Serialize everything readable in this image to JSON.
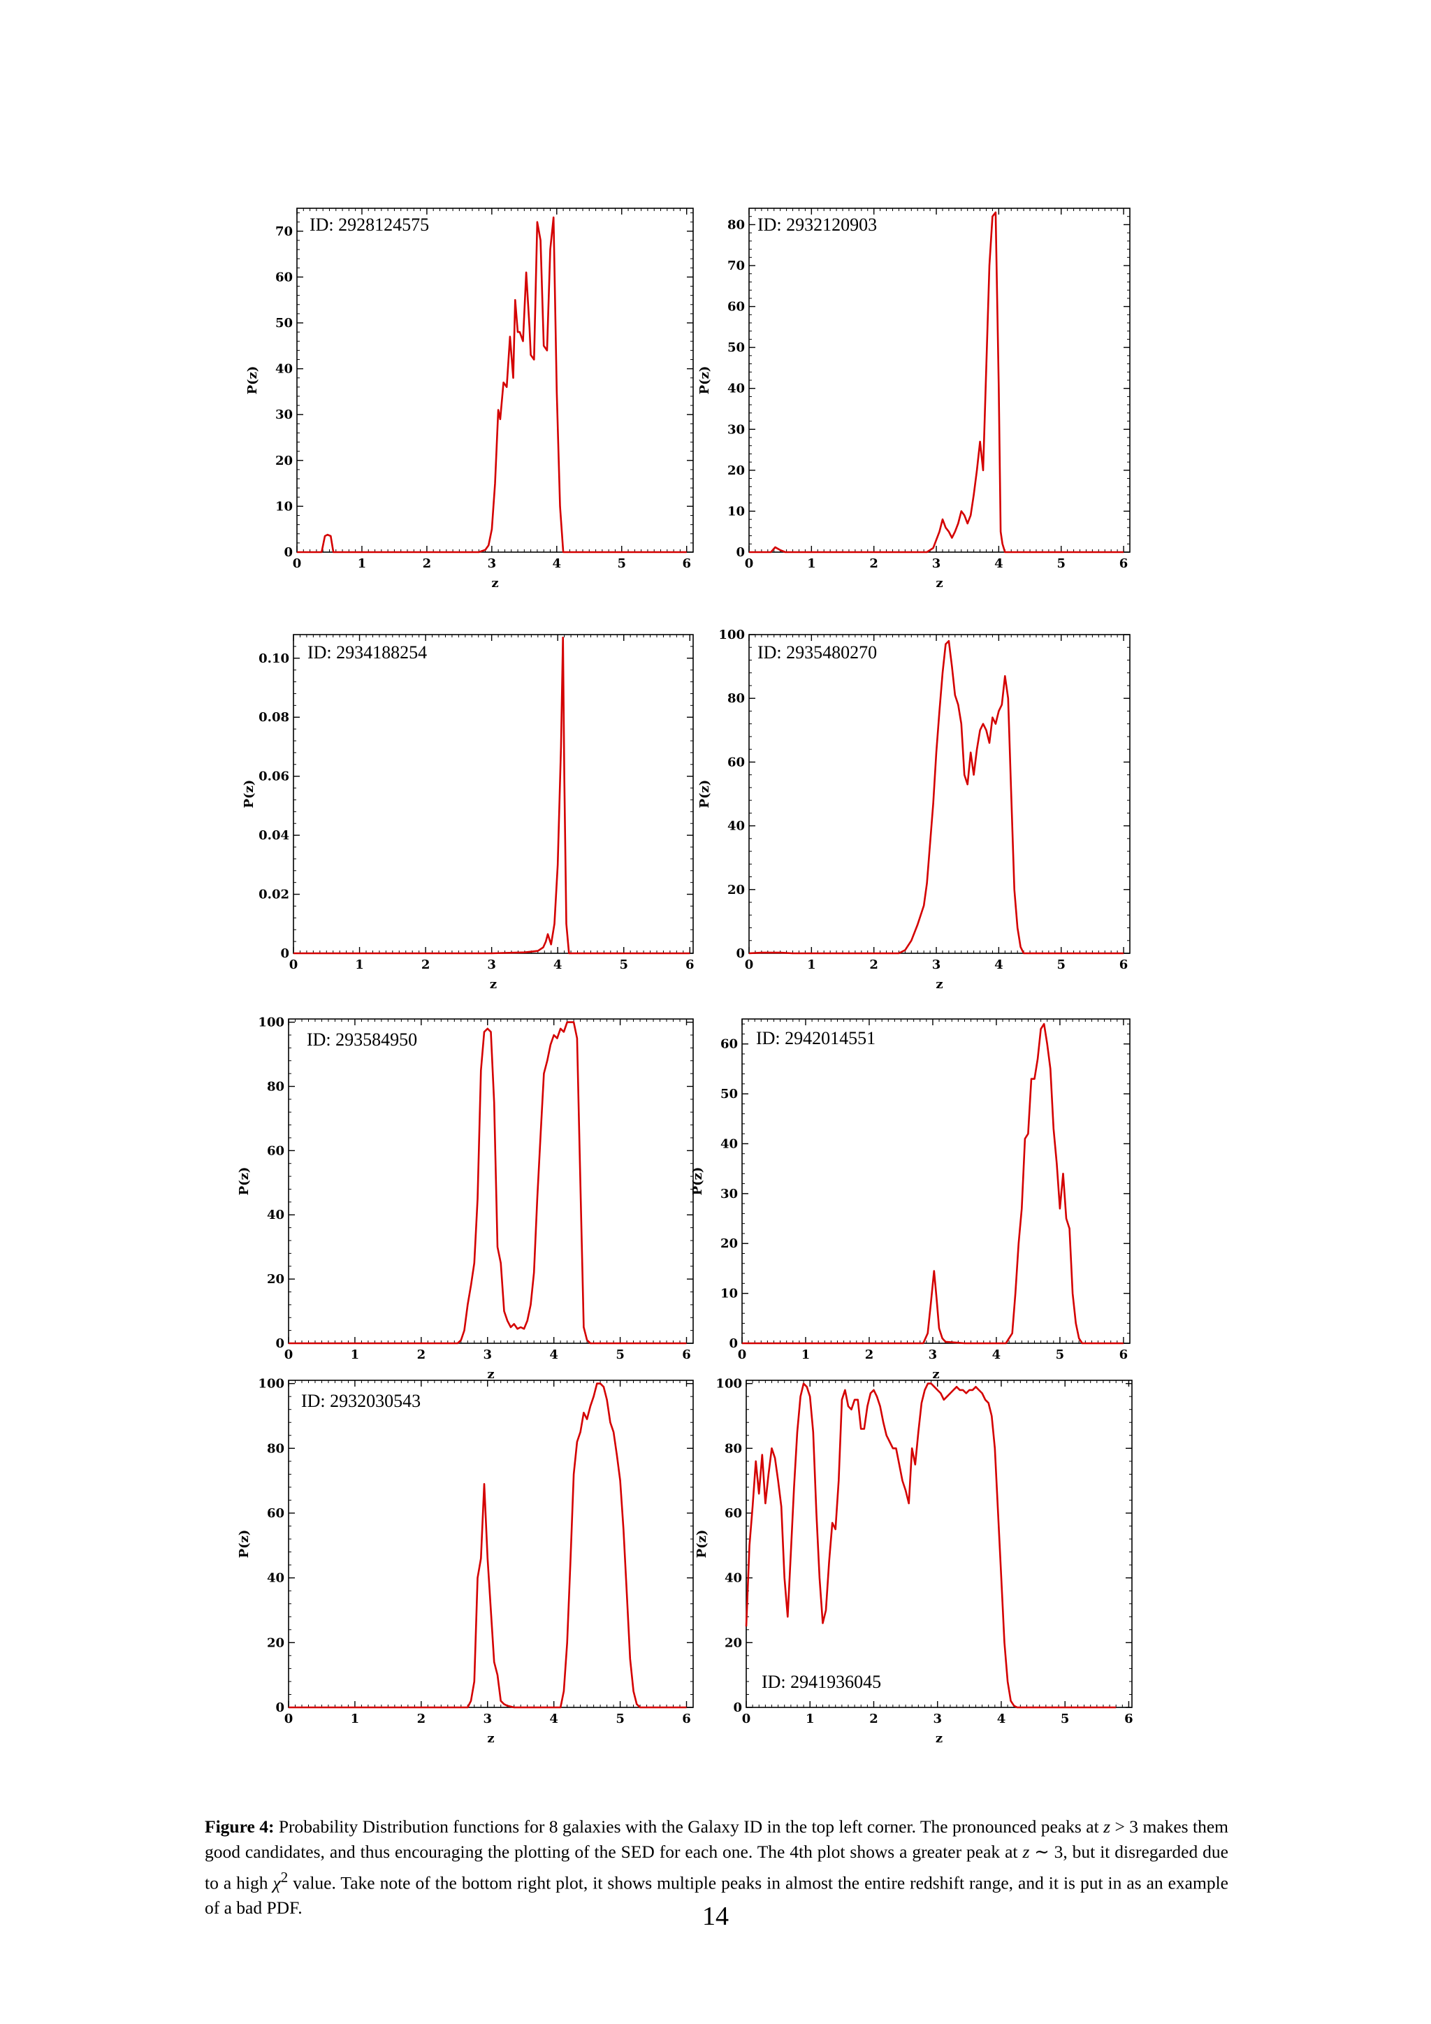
{
  "chart_data": [
    {
      "type": "line",
      "id_label": "ID: 2928124575",
      "xlabel": "z",
      "ylabel": "P(z)",
      "xlim": [
        0,
        6.1
      ],
      "ylim": [
        0,
        75
      ],
      "xticks": [
        0,
        1,
        2,
        3,
        4,
        5,
        6
      ],
      "yticks": [
        0,
        10,
        20,
        30,
        40,
        50,
        60,
        70
      ],
      "ytick_labels": [
        "0",
        "10",
        "20",
        "30",
        "40",
        "50",
        "60",
        "70"
      ],
      "color": "#d40000",
      "x": [
        0,
        0.38,
        0.43,
        0.47,
        0.52,
        0.56,
        0.62,
        2.8,
        2.9,
        2.95,
        3.0,
        3.05,
        3.1,
        3.13,
        3.18,
        3.23,
        3.28,
        3.33,
        3.36,
        3.4,
        3.43,
        3.48,
        3.53,
        3.58,
        3.6,
        3.65,
        3.7,
        3.75,
        3.8,
        3.85,
        3.9,
        3.95,
        4.0,
        4.05,
        4.1,
        4.15,
        4.2,
        6.0
      ],
      "y": [
        0,
        0,
        3.5,
        3.8,
        3.5,
        0,
        0,
        0,
        0.5,
        1.5,
        5,
        15,
        31,
        29,
        37,
        36,
        47,
        38,
        55,
        48,
        48,
        46,
        61,
        49,
        43,
        42,
        72,
        68,
        45,
        44,
        66,
        73,
        35,
        10,
        0,
        0,
        0,
        0
      ]
    },
    {
      "type": "line",
      "id_label": "ID: 2932120903",
      "xlabel": "z",
      "ylabel": "P(z)",
      "xlim": [
        0,
        6.1
      ],
      "ylim": [
        0,
        84
      ],
      "xticks": [
        0,
        1,
        2,
        3,
        4,
        5,
        6
      ],
      "yticks": [
        0,
        10,
        20,
        30,
        40,
        50,
        60,
        70,
        80
      ],
      "ytick_labels": [
        "0",
        "10",
        "20",
        "30",
        "40",
        "50",
        "60",
        "70",
        "80"
      ],
      "color": "#d40000",
      "x": [
        0,
        0.35,
        0.42,
        0.5,
        0.58,
        2.85,
        2.95,
        3.0,
        3.05,
        3.1,
        3.15,
        3.2,
        3.25,
        3.3,
        3.35,
        3.4,
        3.45,
        3.5,
        3.55,
        3.6,
        3.65,
        3.7,
        3.75,
        3.8,
        3.85,
        3.9,
        3.95,
        4.0,
        4.03,
        4.06,
        4.1,
        4.15,
        4.2,
        6.0
      ],
      "y": [
        0,
        0,
        1.2,
        0.5,
        0,
        0,
        1,
        3,
        5,
        8,
        6,
        5,
        3.5,
        5,
        7,
        10,
        9,
        7,
        9,
        14,
        20,
        27,
        20,
        45,
        70,
        82,
        83,
        40,
        5,
        2,
        0,
        0,
        0,
        0
      ]
    },
    {
      "type": "line",
      "id_label": "ID: 2934188254",
      "xlabel": "z",
      "ylabel": "P(z)",
      "xlim": [
        0,
        6.05
      ],
      "ylim": [
        0,
        0.108
      ],
      "xticks": [
        0,
        1,
        2,
        3,
        4,
        5,
        6
      ],
      "yticks": [
        0,
        0.02,
        0.04,
        0.06,
        0.08,
        0.1
      ],
      "ytick_labels": [
        "0",
        "0.02",
        "0.04",
        "0.06",
        "0.08",
        "0.10"
      ],
      "color": "#d40000",
      "x": [
        0,
        2.7,
        3.0,
        3.5,
        3.7,
        3.78,
        3.82,
        3.85,
        3.9,
        3.95,
        4.0,
        4.05,
        4.08,
        4.1,
        4.13,
        4.17,
        4.2,
        6.0
      ],
      "y": [
        0,
        0,
        0,
        0.0003,
        0.0008,
        0.002,
        0.004,
        0.0065,
        0.003,
        0.01,
        0.03,
        0.07,
        0.107,
        0.06,
        0.01,
        0,
        0,
        0
      ]
    },
    {
      "type": "line",
      "id_label": "ID: 2935480270",
      "xlabel": "z",
      "ylabel": "P(z)",
      "xlim": [
        0,
        6.1
      ],
      "ylim": [
        0,
        100
      ],
      "xticks": [
        0,
        1,
        2,
        3,
        4,
        5,
        6
      ],
      "yticks": [
        0,
        20,
        40,
        60,
        80,
        100
      ],
      "ytick_labels": [
        "0",
        "20",
        "40",
        "60",
        "80",
        "100"
      ],
      "color": "#d40000",
      "x": [
        0,
        0.2,
        0.5,
        0.7,
        2.4,
        2.5,
        2.6,
        2.7,
        2.8,
        2.85,
        2.95,
        3.0,
        3.05,
        3.1,
        3.15,
        3.2,
        3.25,
        3.3,
        3.35,
        3.4,
        3.45,
        3.5,
        3.55,
        3.6,
        3.65,
        3.7,
        3.75,
        3.8,
        3.85,
        3.9,
        3.95,
        4.0,
        4.05,
        4.1,
        4.15,
        4.2,
        4.25,
        4.3,
        4.35,
        4.4,
        4.45,
        4.5,
        4.55,
        6.0
      ],
      "y": [
        0,
        0.2,
        0.2,
        0,
        0,
        1,
        4,
        9,
        15,
        22,
        47,
        63,
        76,
        88,
        97,
        98,
        90,
        81,
        78,
        72,
        56,
        53,
        63,
        56,
        64,
        70,
        72,
        70,
        66,
        74,
        72,
        76,
        78,
        87,
        80,
        50,
        20,
        8,
        2,
        0,
        0,
        0,
        0,
        0
      ]
    },
    {
      "type": "line",
      "id_label": "ID: 293584950",
      "xlabel": "z",
      "ylabel": "P(z)",
      "xlim": [
        0,
        6.1
      ],
      "ylim": [
        0,
        101
      ],
      "xticks": [
        0,
        1,
        2,
        3,
        4,
        5,
        6
      ],
      "yticks": [
        0,
        20,
        40,
        60,
        80,
        100
      ],
      "ytick_labels": [
        "0",
        "20",
        "40",
        "60",
        "80",
        "100"
      ],
      "color": "#d40000",
      "x": [
        0,
        2.55,
        2.6,
        2.65,
        2.7,
        2.75,
        2.8,
        2.85,
        2.9,
        2.95,
        3.0,
        3.05,
        3.1,
        3.15,
        3.2,
        3.25,
        3.3,
        3.35,
        3.4,
        3.45,
        3.5,
        3.55,
        3.6,
        3.65,
        3.7,
        3.75,
        3.8,
        3.85,
        3.9,
        3.95,
        4.0,
        4.05,
        4.1,
        4.15,
        4.2,
        4.25,
        4.3,
        4.35,
        4.4,
        4.45,
        4.5,
        4.55,
        4.6,
        4.65,
        6.0
      ],
      "y": [
        0,
        0,
        1,
        4,
        12,
        18,
        25,
        45,
        85,
        97,
        98,
        97,
        75,
        30,
        25,
        10,
        7,
        5,
        6,
        4.5,
        5,
        4.5,
        7,
        12,
        22,
        45,
        65,
        84,
        88,
        93,
        96,
        95,
        98,
        97,
        100,
        100,
        100,
        95,
        50,
        5,
        1,
        0,
        0,
        0,
        0
      ]
    },
    {
      "type": "line",
      "id_label": "ID: 2942014551",
      "xlabel": "z",
      "ylabel": "P(z)",
      "xlim": [
        0,
        6.1
      ],
      "ylim": [
        0,
        65
      ],
      "xticks": [
        0,
        1,
        2,
        3,
        4,
        5,
        6
      ],
      "yticks": [
        0,
        10,
        20,
        30,
        40,
        50,
        60
      ],
      "ytick_labels": [
        "0",
        "10",
        "20",
        "30",
        "40",
        "50",
        "60"
      ],
      "color": "#d40000",
      "x": [
        0,
        2.85,
        2.92,
        2.97,
        3.02,
        3.06,
        3.1,
        3.15,
        3.2,
        3.3,
        3.5,
        4.15,
        4.25,
        4.3,
        4.35,
        4.4,
        4.45,
        4.5,
        4.55,
        4.6,
        4.65,
        4.7,
        4.75,
        4.8,
        4.85,
        4.9,
        4.95,
        5.0,
        5.05,
        5.1,
        5.15,
        5.2,
        5.25,
        5.3,
        5.35,
        5.4,
        6.0
      ],
      "y": [
        0,
        0,
        2,
        8,
        14.5,
        9,
        3,
        1,
        0.3,
        0.2,
        0,
        0,
        2,
        10,
        20,
        27,
        41,
        42,
        53,
        53,
        57,
        63,
        64,
        60,
        55,
        43,
        36,
        27,
        34,
        25,
        23,
        10,
        4,
        1,
        0,
        0,
        0
      ]
    },
    {
      "type": "line",
      "id_label": "ID: 2932030543",
      "xlabel": "z",
      "ylabel": "P(z)",
      "xlim": [
        0,
        6.1
      ],
      "ylim": [
        0,
        101
      ],
      "xticks": [
        0,
        1,
        2,
        3,
        4,
        5,
        6
      ],
      "yticks": [
        0,
        20,
        40,
        60,
        80,
        100
      ],
      "ytick_labels": [
        "0",
        "20",
        "40",
        "60",
        "80",
        "100"
      ],
      "color": "#d40000",
      "x": [
        0,
        2.7,
        2.75,
        2.8,
        2.85,
        2.9,
        2.95,
        3.0,
        3.05,
        3.1,
        3.15,
        3.2,
        3.25,
        3.3,
        3.4,
        4.1,
        4.15,
        4.2,
        4.25,
        4.3,
        4.35,
        4.4,
        4.45,
        4.5,
        4.55,
        4.6,
        4.65,
        4.7,
        4.75,
        4.8,
        4.85,
        4.9,
        4.95,
        5.0,
        5.05,
        5.1,
        5.15,
        5.2,
        5.25,
        5.3,
        5.35,
        6.0
      ],
      "y": [
        0,
        0,
        2,
        8,
        40,
        46,
        69,
        46,
        30,
        14,
        10,
        2,
        1,
        0.5,
        0,
        0,
        5,
        20,
        45,
        72,
        82,
        85,
        91,
        89,
        93,
        96,
        100,
        100,
        99,
        95,
        88,
        85,
        78,
        70,
        55,
        35,
        15,
        5,
        1,
        0,
        0,
        0
      ]
    },
    {
      "type": "line",
      "id_label": "ID: 2941936045",
      "xlabel": "z",
      "ylabel": "P(z)",
      "xlim": [
        0,
        6.05
      ],
      "ylim": [
        0,
        101
      ],
      "xticks": [
        0,
        1,
        2,
        3,
        4,
        5,
        6
      ],
      "yticks": [
        0,
        20,
        40,
        60,
        80,
        100
      ],
      "ytick_labels": [
        "0",
        "20",
        "40",
        "60",
        "80",
        "100"
      ],
      "color": "#d40000",
      "x": [
        0,
        0.05,
        0.1,
        0.15,
        0.2,
        0.25,
        0.3,
        0.35,
        0.4,
        0.45,
        0.5,
        0.55,
        0.6,
        0.65,
        0.7,
        0.75,
        0.8,
        0.85,
        0.9,
        0.95,
        1.0,
        1.05,
        1.1,
        1.15,
        1.2,
        1.25,
        1.3,
        1.35,
        1.4,
        1.45,
        1.5,
        1.55,
        1.6,
        1.65,
        1.7,
        1.75,
        1.8,
        1.85,
        1.9,
        1.95,
        2.0,
        2.05,
        2.1,
        2.15,
        2.2,
        2.25,
        2.3,
        2.35,
        2.4,
        2.45,
        2.5,
        2.55,
        2.6,
        2.65,
        2.7,
        2.75,
        2.8,
        2.85,
        2.9,
        2.95,
        3.0,
        3.05,
        3.1,
        3.15,
        3.2,
        3.25,
        3.3,
        3.35,
        3.4,
        3.45,
        3.5,
        3.55,
        3.6,
        3.65,
        3.7,
        3.75,
        3.8,
        3.85,
        3.9,
        3.95,
        4.0,
        4.05,
        4.1,
        4.15,
        4.2,
        4.25,
        4.3,
        4.35,
        4.4,
        4.45,
        4.5,
        4.55,
        4.6,
        4.65,
        4.7,
        4.75,
        4.8,
        4.85,
        5.0,
        5.5,
        5.8
      ],
      "y": [
        25,
        50,
        62,
        76,
        66,
        78,
        63,
        72,
        80,
        77,
        70,
        62,
        40,
        28,
        48,
        68,
        85,
        96,
        100,
        99,
        96,
        85,
        60,
        40,
        26,
        30,
        45,
        57,
        55,
        70,
        95,
        98,
        93,
        92,
        95,
        95,
        86,
        86,
        93,
        97,
        98,
        96,
        93,
        88,
        84,
        82,
        80,
        80,
        75,
        70,
        67,
        63,
        80,
        75,
        85,
        94,
        98,
        100,
        100,
        99,
        98,
        97,
        95,
        96,
        97,
        98,
        99,
        98,
        98,
        97,
        98,
        98,
        99,
        98,
        97,
        95,
        94,
        90,
        80,
        60,
        40,
        20,
        8,
        2,
        0.5,
        0,
        0,
        0,
        0,
        0,
        0,
        0,
        0,
        0,
        0,
        0,
        0,
        0,
        0,
        0,
        0
      ]
    }
  ],
  "caption": {
    "label": "Figure 4:",
    "text_1": " Probability Distribution functions for 8 galaxies with the Galaxy ID in the top left corner. The pronounced peaks at ",
    "var_1": "z",
    "text_2": " > 3 makes them good candidates, and thus encouraging the plotting of the SED for each one. The 4th plot shows a greater peak at ",
    "var_2": "z",
    "text_3": " ∼ 3, but it disregarded due to a high ",
    "chi": "χ",
    "chi_sup": "2",
    "text_4": " value. Take note of the bottom right plot, it shows multiple peaks in almost the entire redshift range, and it is put in as an example of a bad PDF."
  },
  "page_number": "14"
}
